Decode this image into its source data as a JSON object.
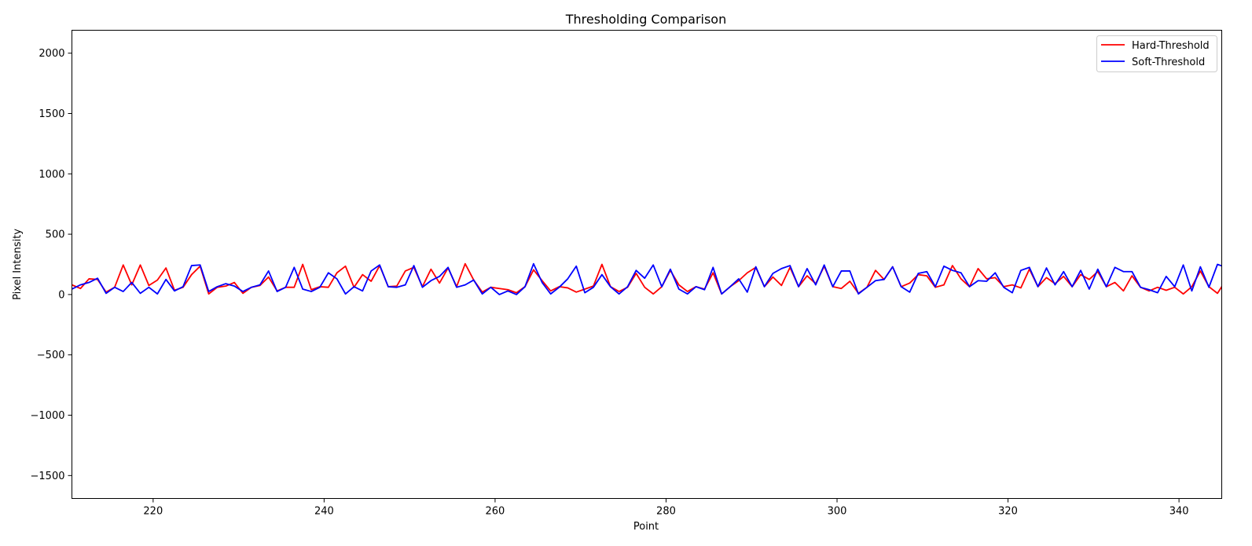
{
  "chart_data": {
    "type": "line",
    "title": "Thresholding Comparison",
    "xlabel": "Point",
    "ylabel": "Pixel Intensity",
    "xlim": [
      210.5,
      345
    ],
    "ylim": [
      -1690,
      2190
    ],
    "xticks": [
      220,
      240,
      260,
      280,
      300,
      320,
      340
    ],
    "yticks": [
      -1500,
      -1000,
      -500,
      0,
      500,
      1000,
      1500,
      2000
    ],
    "xtick_labels": [
      "220",
      "240",
      "260",
      "280",
      "300",
      "320",
      "340"
    ],
    "ytick_labels": [
      "−1500",
      "−1000",
      "−500",
      "0",
      "500",
      "1000",
      "1500",
      "2000"
    ],
    "grid": false,
    "legend": {
      "location": "top-right",
      "entries": [
        "Hard-Threshold",
        "Soft-Threshold"
      ]
    },
    "x_start": 210.5,
    "series": [
      {
        "name": "Hard-Threshold",
        "color": "#ff0000",
        "values": [
          80,
          50,
          130,
          125,
          20,
          60,
          245,
          80,
          245,
          75,
          120,
          220,
          35,
          60,
          165,
          235,
          5,
          60,
          70,
          100,
          10,
          60,
          75,
          145,
          30,
          60,
          60,
          250,
          40,
          65,
          60,
          180,
          235,
          60,
          165,
          110,
          240,
          65,
          70,
          195,
          225,
          65,
          210,
          95,
          220,
          65,
          255,
          120,
          20,
          60,
          50,
          40,
          15,
          65,
          205,
          115,
          30,
          65,
          55,
          20,
          45,
          70,
          250,
          65,
          25,
          60,
          175,
          60,
          5,
          65,
          200,
          80,
          25,
          65,
          45,
          180,
          5,
          65,
          115,
          180,
          225,
          65,
          145,
          75,
          225,
          65,
          155,
          90,
          235,
          65,
          50,
          110,
          10,
          60,
          200,
          125,
          230,
          65,
          95,
          165,
          155,
          60,
          80,
          240,
          130,
          65,
          215,
          130,
          140,
          65,
          80,
          55,
          210,
          65,
          140,
          90,
          150,
          65,
          165,
          125,
          190,
          65,
          100,
          30,
          155,
          60,
          30,
          60,
          35,
          60,
          5,
          65,
          195,
          65,
          10,
          120
        ]
      },
      {
        "name": "Soft-Threshold",
        "color": "#0000ff",
        "values": [
          45,
          80,
          100,
          135,
          10,
          60,
          25,
          100,
          10,
          60,
          5,
          125,
          30,
          65,
          240,
          245,
          25,
          65,
          90,
          70,
          25,
          60,
          80,
          195,
          25,
          60,
          225,
          45,
          25,
          60,
          180,
          130,
          5,
          65,
          30,
          195,
          245,
          65,
          60,
          80,
          240,
          60,
          115,
          150,
          225,
          60,
          80,
          120,
          5,
          60,
          0,
          30,
          0,
          65,
          255,
          100,
          5,
          60,
          130,
          235,
          15,
          60,
          165,
          65,
          5,
          65,
          200,
          135,
          245,
          65,
          210,
          45,
          5,
          65,
          40,
          225,
          5,
          65,
          130,
          20,
          230,
          65,
          175,
          215,
          240,
          65,
          215,
          80,
          245,
          65,
          195,
          195,
          5,
          60,
          115,
          125,
          230,
          65,
          20,
          175,
          190,
          65,
          235,
          200,
          180,
          65,
          115,
          110,
          180,
          60,
          15,
          200,
          225,
          65,
          220,
          80,
          190,
          65,
          200,
          45,
          210,
          65,
          225,
          190,
          190,
          60,
          40,
          15,
          150,
          65,
          245,
          30,
          230,
          60,
          250,
          225
        ]
      }
    ]
  }
}
